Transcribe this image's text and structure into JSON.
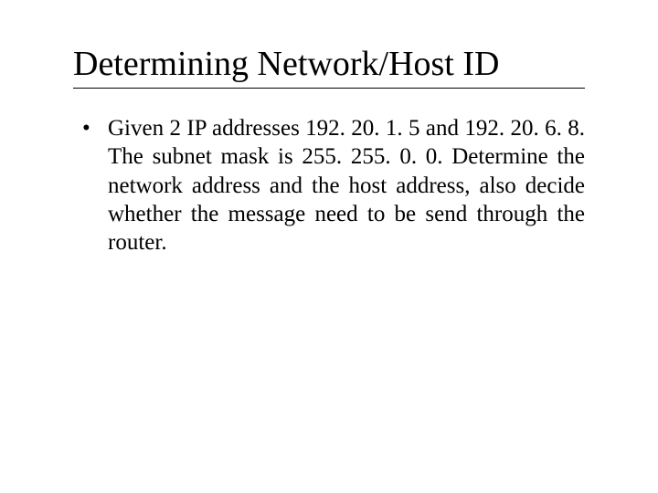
{
  "slide": {
    "title": "Determining Network/Host ID",
    "bullet_text": "Given 2 IP addresses 192. 20. 1. 5 and 192. 20. 6. 8. The subnet mask is 255. 255. 0. 0. Determine the network address and the host address, also decide whether the message need to be send through the router.",
    "background_color": "#ffffff",
    "text_color": "#000000",
    "title_fontsize": 38,
    "body_fontsize": 25,
    "font_family": "Times New Roman"
  }
}
